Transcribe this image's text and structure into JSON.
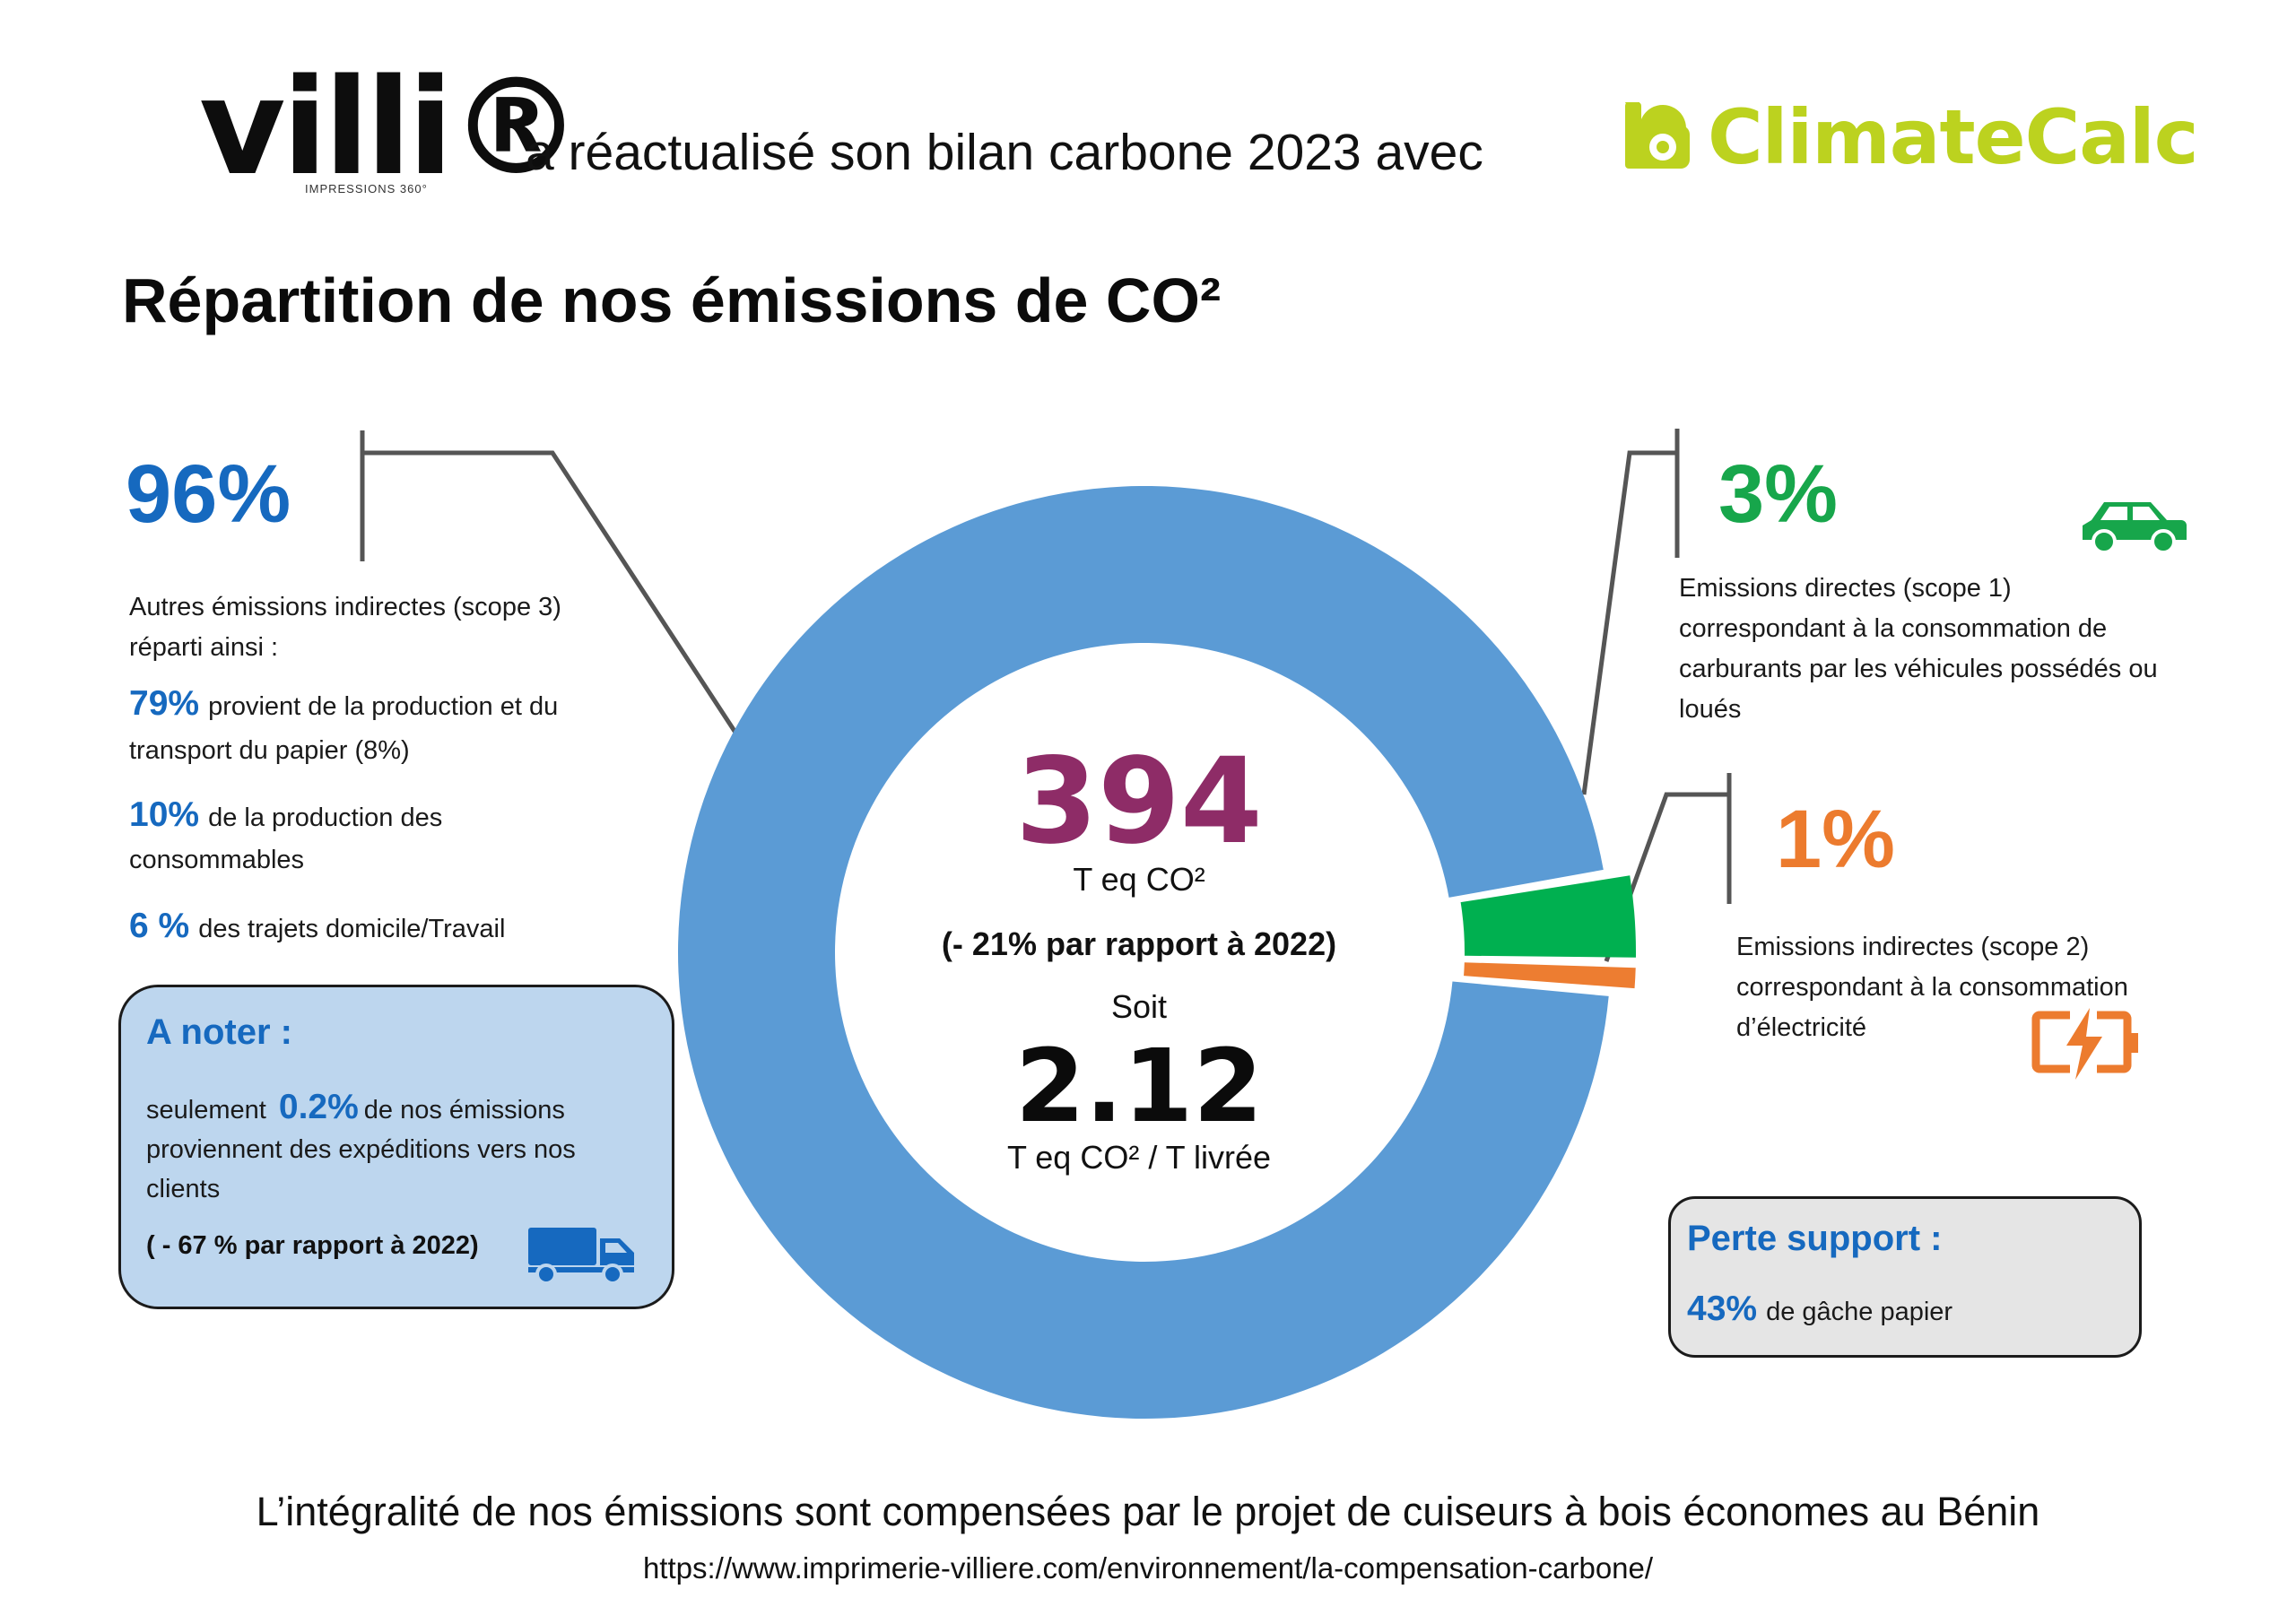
{
  "header": {
    "brand": "villi®",
    "brand_sub": "IMPRESSIONS 360°",
    "text": "a réactualisé son bilan carbone 2023 avec",
    "partner": "ClimateCalc"
  },
  "title": "Répartition de nos émissions de CO²",
  "chart_data": {
    "type": "pie",
    "donut": true,
    "slices": [
      {
        "label": "Autres émissions indirectes (scope 3)",
        "value": 96,
        "color": "#5b9bd5"
      },
      {
        "label": "Emissions directes (scope 1)",
        "value": 3,
        "color": "#00b050"
      },
      {
        "label": "Emissions indirectes (scope 2)",
        "value": 1,
        "color": "#ed7d31"
      }
    ]
  },
  "scope3": {
    "pct": "96%",
    "desc_line1": "Autres émissions indirectes (scope 3)",
    "desc_line2": "réparti ainsi :",
    "items": [
      {
        "pct": "79%",
        "text1": "provient de la production et du",
        "text2": "transport du papier (8%)"
      },
      {
        "pct": "10%",
        "text1": "de la production des",
        "text2": "consommables"
      },
      {
        "pct": "6 %",
        "text1": "des trajets domicile/Travail",
        "text2": ""
      }
    ]
  },
  "note": {
    "title": "A noter :",
    "pre": "seulement",
    "pct": "0.2%",
    "post": "de nos émissions",
    "line2": "proviennent des expéditions vers nos",
    "line3": "clients",
    "line4": "( - 67 % par rapport à 2022)"
  },
  "center": {
    "total": "394",
    "unit": "T eq CO²",
    "change": "(- 21% par rapport à 2022)",
    "soit": "Soit",
    "ratio": "2.12",
    "ratio_unit": "T eq CO² / T livrée"
  },
  "scope1": {
    "pct": "3%",
    "line1": "Emissions directes (scope 1)",
    "line2": "correspondant à la consommation de",
    "line3": "carburants par les véhicules possédés ou",
    "line4": "loués"
  },
  "scope2": {
    "pct": "1%",
    "line1": "Emissions indirectes (scope 2)",
    "line2": "correspondant à la consommation",
    "line3": "d’électricité"
  },
  "support": {
    "title": "Perte support :",
    "pct": "43%",
    "text": "de gâche papier"
  },
  "footer": {
    "main": "L’intégralité de nos émissions sont compensées par le projet de cuiseurs à bois économes au Bénin",
    "url": "https://www.imprimerie-villiere.com/environnement/la-compensation-carbone/"
  },
  "colors": {
    "blue_text": "#1669bf",
    "green_text": "#17a64b",
    "orange_text": "#ec7b2e",
    "center_total": "#8e2c67",
    "partner": "#bcd21f"
  }
}
